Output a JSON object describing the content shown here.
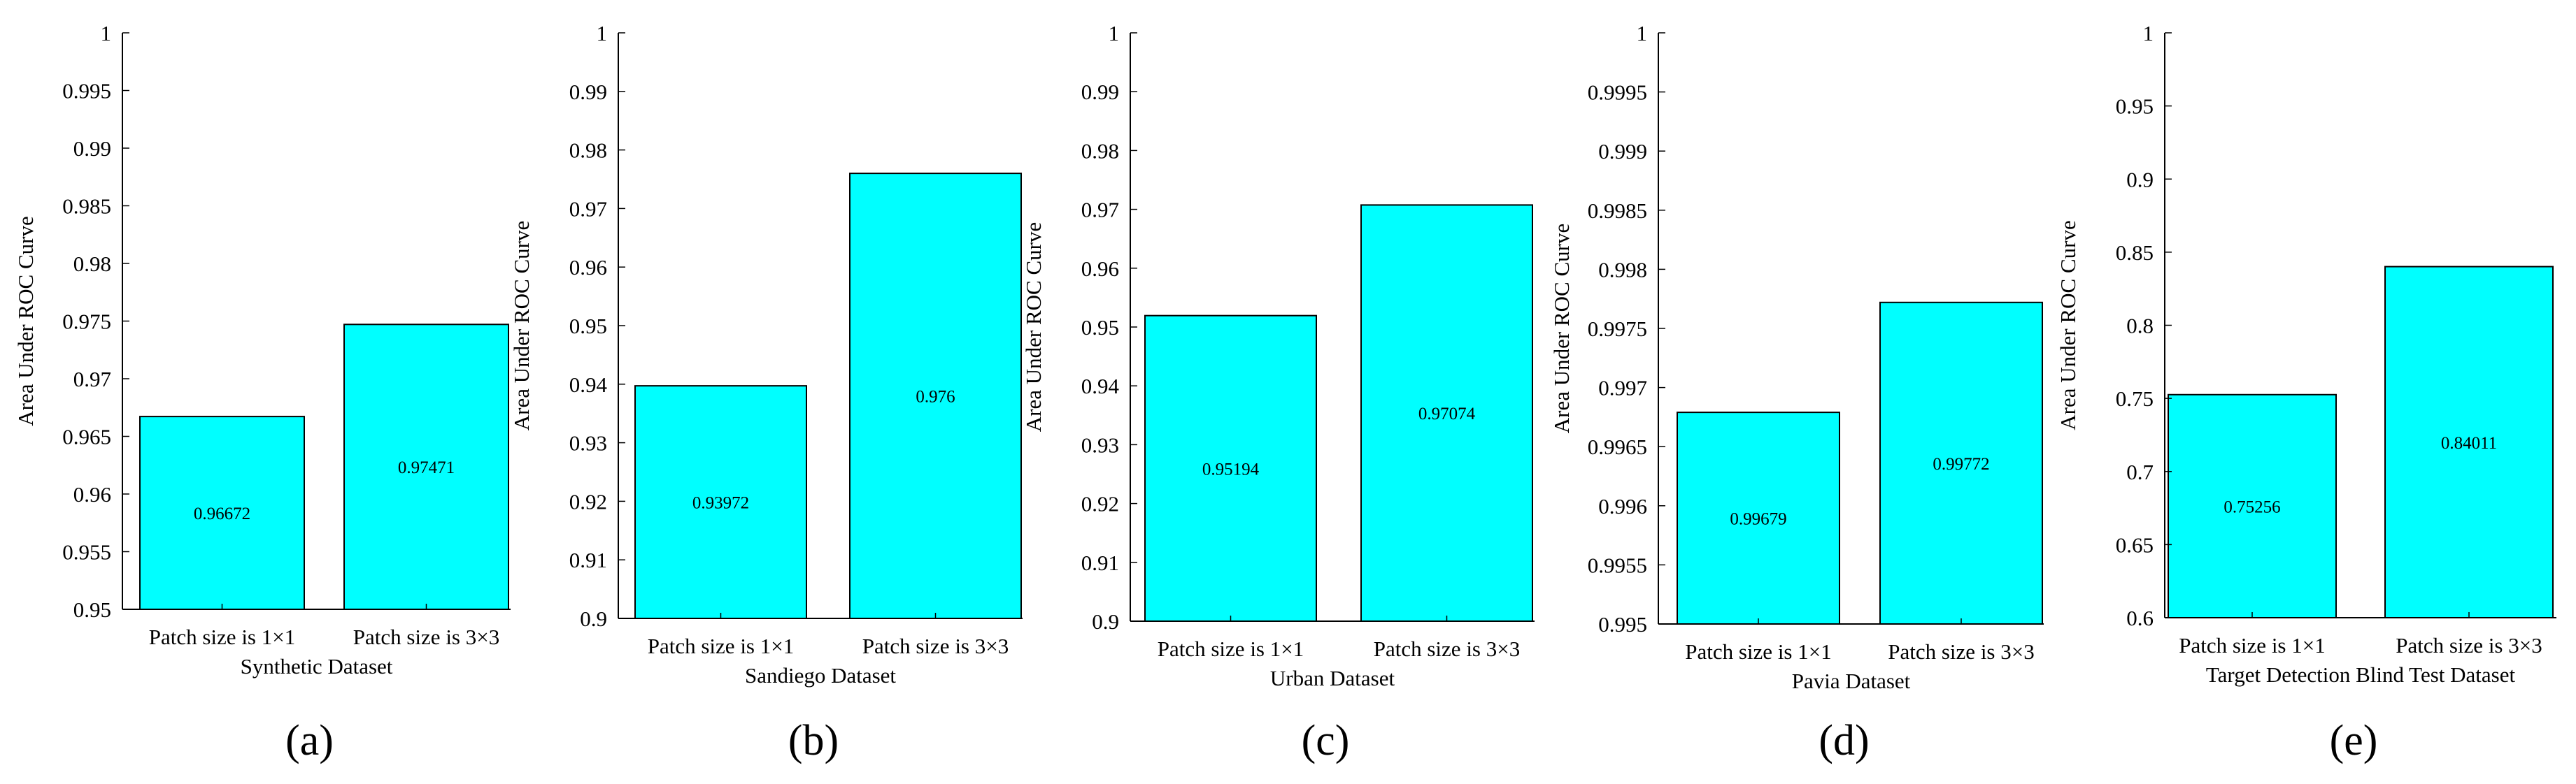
{
  "figure": {
    "panel_labels": [
      "(a)",
      "(b)",
      "(c)",
      "(d)",
      "(e)"
    ]
  },
  "colors": {
    "bar": "#00FFFF",
    "edge": "#000000"
  },
  "chart_data": [
    {
      "type": "bar",
      "categories": [
        "Patch size is 1×1",
        "Patch size is 3×3"
      ],
      "values": [
        0.96672,
        0.97471
      ],
      "value_labels": [
        "0.96672",
        "0.97471"
      ],
      "xlabel": "Synthetic Dataset",
      "ylabel": "Area Under ROC Curve",
      "ylim": [
        0.95,
        1
      ],
      "yticks": [
        0.95,
        0.955,
        0.96,
        0.965,
        0.97,
        0.975,
        0.98,
        0.985,
        0.99,
        0.995,
        1
      ],
      "ytick_labels": [
        "0.95",
        "0.955",
        "0.96",
        "0.965",
        "0.97",
        "0.975",
        "0.98",
        "0.985",
        "0.99",
        "0.995",
        "1"
      ],
      "grid": false
    },
    {
      "type": "bar",
      "categories": [
        "Patch size is 1×1",
        "Patch size is 3×3"
      ],
      "values": [
        0.93972,
        0.976
      ],
      "value_labels": [
        "0.93972",
        "0.976"
      ],
      "xlabel": "Sandiego Dataset",
      "ylabel": "Area Under ROC Curve",
      "ylim": [
        0.9,
        1
      ],
      "yticks": [
        0.9,
        0.91,
        0.92,
        0.93,
        0.94,
        0.95,
        0.96,
        0.97,
        0.98,
        0.99,
        1
      ],
      "ytick_labels": [
        "0.9",
        "0.91",
        "0.92",
        "0.93",
        "0.94",
        "0.95",
        "0.96",
        "0.97",
        "0.98",
        "0.99",
        "1"
      ],
      "grid": false
    },
    {
      "type": "bar",
      "categories": [
        "Patch size is 1×1",
        "Patch size is 3×3"
      ],
      "values": [
        0.95194,
        0.97074
      ],
      "value_labels": [
        "0.95194",
        "0.97074"
      ],
      "xlabel": "Urban Dataset",
      "ylabel": "Area Under ROC Curve",
      "ylim": [
        0.9,
        1
      ],
      "yticks": [
        0.9,
        0.91,
        0.92,
        0.93,
        0.94,
        0.95,
        0.96,
        0.97,
        0.98,
        0.99,
        1
      ],
      "ytick_labels": [
        "0.9",
        "0.91",
        "0.92",
        "0.93",
        "0.94",
        "0.95",
        "0.96",
        "0.97",
        "0.98",
        "0.99",
        "1"
      ],
      "grid": false
    },
    {
      "type": "bar",
      "categories": [
        "Patch size is 1×1",
        "Patch size is 3×3"
      ],
      "values": [
        0.99679,
        0.99772
      ],
      "value_labels": [
        "0.99679",
        "0.99772"
      ],
      "xlabel": "Pavia Dataset",
      "ylabel": "Area Under ROC Curve",
      "ylim": [
        0.995,
        1
      ],
      "yticks": [
        0.995,
        0.9955,
        0.996,
        0.9965,
        0.997,
        0.9975,
        0.998,
        0.9985,
        0.999,
        0.9995,
        1
      ],
      "ytick_labels": [
        "0.995",
        "0.9955",
        "0.996",
        "0.9965",
        "0.997",
        "0.9975",
        "0.998",
        "0.9985",
        "0.999",
        "0.9995",
        "1"
      ],
      "grid": false
    },
    {
      "type": "bar",
      "categories": [
        "Patch size is 1×1",
        "Patch size is 3×3"
      ],
      "values": [
        0.75256,
        0.84011
      ],
      "value_labels": [
        "0.75256",
        "0.84011"
      ],
      "xlabel": "Target Detection Blind Test Dataset",
      "ylabel": "Area Under ROC Curve",
      "ylim": [
        0.6,
        1
      ],
      "yticks": [
        0.6,
        0.65,
        0.7,
        0.75,
        0.8,
        0.85,
        0.9,
        0.95,
        1
      ],
      "ytick_labels": [
        "0.6",
        "0.65",
        "0.7",
        "0.75",
        "0.8",
        "0.85",
        "0.9",
        "0.95",
        "1"
      ],
      "grid": false
    }
  ]
}
